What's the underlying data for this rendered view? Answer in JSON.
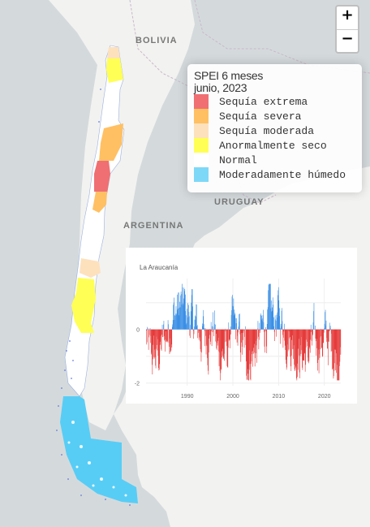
{
  "map": {
    "labels": {
      "bolivia": "BOLIVIA",
      "argentina": "ARGENTINA",
      "uruguay": "URUGUAY"
    },
    "colors": {
      "land": "#f2f2f0",
      "water": "#d4dadc",
      "chile": "#ffffff"
    }
  },
  "zoom": {
    "in_label": "+",
    "out_label": "−"
  },
  "legend": {
    "title": "SPEI 6 meses",
    "subtitle": "junio, 2023",
    "items": [
      {
        "label": "Sequía extrema",
        "color": "#ef6f73"
      },
      {
        "label": "Sequía severa",
        "color": "#ffc063"
      },
      {
        "label": "Sequía moderada",
        "color": "#fde1bd"
      },
      {
        "label": "Anormalmente seco",
        "color": "#ffff55"
      },
      {
        "label": "Normal",
        "color": "#ffffff"
      },
      {
        "label": "Moderadamente húmedo",
        "color": "#7dd8f7"
      }
    ]
  },
  "chart_data": {
    "type": "bar",
    "title": "La Araucanía",
    "ylim": [
      -2.1,
      1.9
    ],
    "yticks": [
      0,
      -2
    ],
    "xticks": [
      1990,
      2000,
      2010,
      2020
    ],
    "xlim": [
      1981,
      2023.6
    ],
    "positive_color": "#3b8fe6",
    "negative_color": "#e63b3b",
    "grid": true
  }
}
